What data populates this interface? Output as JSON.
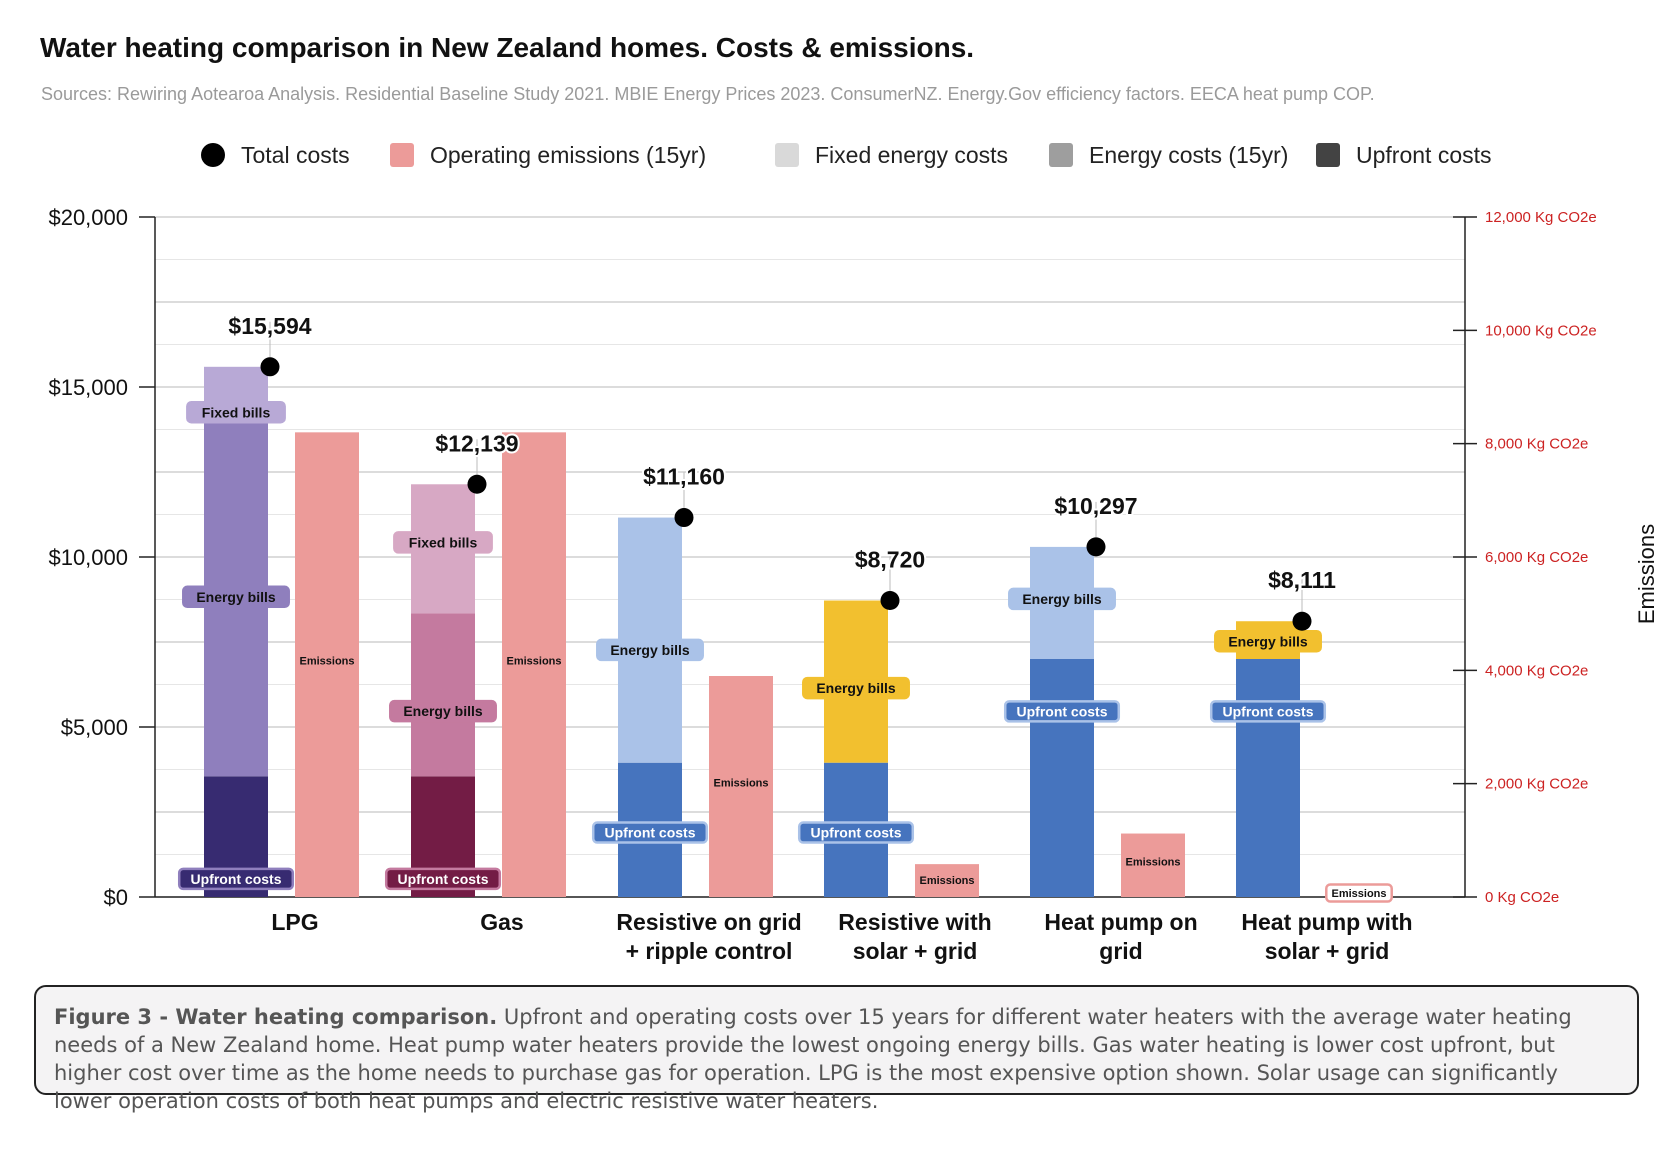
{
  "chart_data": {
    "type": "bar",
    "title": "Water heating comparison in New Zealand homes. Costs & emissions.",
    "subtitle": "Sources: Rewiring Aotearoa Analysis. Residential Baseline Study 2021. MBIE Energy Prices 2023. ConsumerNZ. Energy.Gov efficiency factors. EECA heat pump COP.",
    "legend": {
      "position": "top",
      "items": [
        {
          "label": "Total costs",
          "color": "#000000",
          "shape": "circle"
        },
        {
          "label": "Operating emissions (15yr)",
          "color": "#ec9b99",
          "shape": "square"
        },
        {
          "label": "Fixed energy costs",
          "color": "#d9d9d9",
          "shape": "square"
        },
        {
          "label": "Energy costs (15yr)",
          "color": "#9e9e9e",
          "shape": "square"
        },
        {
          "label": "Upfront costs",
          "color": "#434343",
          "shape": "square"
        }
      ]
    },
    "categories": [
      "LPG",
      "Gas",
      "Resistive on grid + ripple control",
      "Resistive with solar + grid",
      "Heat pump on grid",
      "Heat pump with solar + grid"
    ],
    "category_lines": [
      [
        "LPG"
      ],
      [
        "Gas"
      ],
      [
        "Resistive on grid",
        "+ ripple control"
      ],
      [
        "Resistive with",
        "solar + grid"
      ],
      [
        "Heat pump on",
        "grid"
      ],
      [
        "Heat pump with",
        "solar + grid"
      ]
    ],
    "series": [
      {
        "name": "Upfront costs",
        "axis": "left",
        "values": [
          3550,
          3550,
          3950,
          3950,
          7000,
          7000
        ],
        "colors": [
          "#372b71",
          "#731c45",
          "#4674be",
          "#4674be",
          "#4674be",
          "#4674be"
        ],
        "segment_label": "Upfront costs"
      },
      {
        "name": "Energy costs (15yr)",
        "axis": "left",
        "values": [
          10560,
          4790,
          7210,
          4770,
          3297,
          1111
        ],
        "colors": [
          "#8f7fbd",
          "#c47a9f",
          "#aac2e8",
          "#f2c02f",
          "#aac2e8",
          "#f2c02f"
        ],
        "segment_label": "Energy bills"
      },
      {
        "name": "Fixed energy costs",
        "axis": "left",
        "values": [
          1484,
          3799,
          0,
          0,
          0,
          0
        ],
        "colors": [
          "#b8a9d6",
          "#d7a8c4",
          "#d9d9d9",
          "#d9d9d9",
          "#d9d9d9",
          "#d9d9d9"
        ],
        "segment_label": "Fixed bills"
      },
      {
        "name": "Operating emissions (15yr)",
        "axis": "right",
        "values": [
          8200,
          8200,
          3900,
          580,
          1120,
          80
        ],
        "colors": [
          "#ec9b99",
          "#ec9b99",
          "#ec9b99",
          "#ec9b99",
          "#ec9b99",
          "#ec9b99"
        ],
        "segment_label": "Emissions"
      }
    ],
    "totals": {
      "name": "Total costs",
      "values": [
        15594,
        12139,
        11160,
        8720,
        10297,
        8111
      ],
      "labels": [
        "$15,594",
        "$12,139",
        "$11,160",
        "$8,720",
        "$10,297",
        "$8,111"
      ]
    },
    "y_left": {
      "ylim": [
        0,
        20000
      ],
      "ticks": [
        0,
        5000,
        10000,
        15000,
        20000
      ],
      "tick_labels": [
        "$0",
        "$5,000",
        "$10,000",
        "$15,000",
        "$20,000"
      ]
    },
    "y_right": {
      "label": "Emissions",
      "ylim": [
        0,
        12000
      ],
      "ticks": [
        0,
        2000,
        4000,
        6000,
        8000,
        10000,
        12000
      ],
      "tick_labels": [
        "0 Kg CO2e",
        "2,000 Kg CO2e",
        "4,000 Kg CO2e",
        "6,000 Kg CO2e",
        "8,000 Kg CO2e",
        "10,000 Kg CO2e",
        "12,000 Kg CO2e"
      ],
      "color": "#cc2222"
    },
    "grid": true
  },
  "caption": {
    "lead": "Figure 3 - Water heating comparison.",
    "text": " Upfront and operating costs over 15 years for different water heaters with the average water heating needs of a New Zealand home. Heat pump water heaters provide the lowest ongoing energy bills. Gas water heating is lower cost upfront, but higher cost over time as the home needs to purchase gas for operation. LPG is the most expensive option shown. Solar usage can significantly lower operation costs of both heat pumps and electric resistive water heaters."
  }
}
